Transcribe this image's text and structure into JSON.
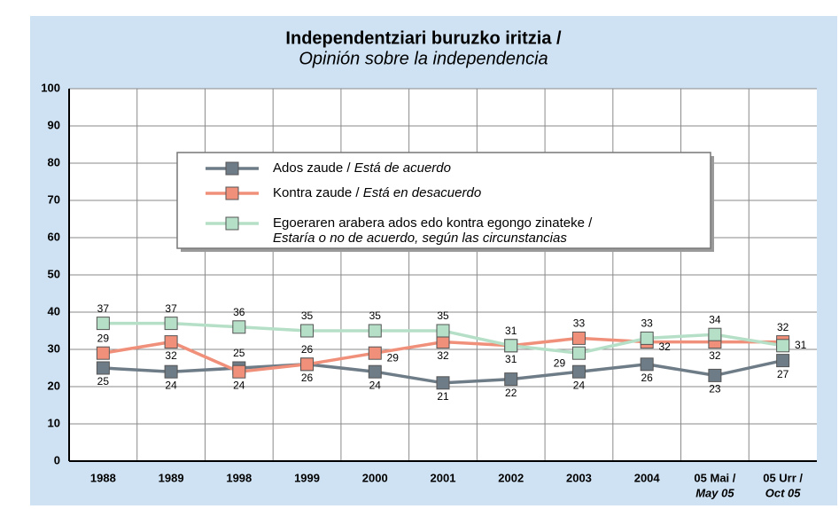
{
  "chart_data": {
    "type": "line",
    "title": [
      "Independentziari buruzko iritzia /",
      "Opinión sobre la independencia"
    ],
    "categories": [
      "1988",
      "1989",
      "1998",
      "1999",
      "2000",
      "2001",
      "2002",
      "2003",
      "2004",
      [
        "05 Mai /",
        "May 05"
      ],
      [
        "05 Urr /",
        "Oct 05"
      ]
    ],
    "ylim": [
      0,
      100
    ],
    "yticks": [
      0,
      10,
      20,
      30,
      40,
      50,
      60,
      70,
      80,
      90,
      100
    ],
    "grid": true,
    "series": [
      {
        "name": "Ados zaude / Está de acuerdo",
        "color": "#6e7c87",
        "values": [
          25,
          24,
          25,
          26,
          24,
          21,
          22,
          24,
          26,
          23,
          27
        ]
      },
      {
        "name": "Kontra zaude / Está en desacuerdo",
        "color": "#f0907a",
        "values": [
          29,
          32,
          24,
          26,
          29,
          32,
          31,
          33,
          32,
          32,
          32
        ]
      },
      {
        "name": "Egoeraren arabera ados edo kontra egongo zinateke / Estaría o no de acuerdo, según las circunstancias",
        "color": "#b5dfc6",
        "values": [
          37,
          37,
          36,
          35,
          35,
          35,
          31,
          29,
          33,
          34,
          31
        ]
      }
    ]
  }
}
